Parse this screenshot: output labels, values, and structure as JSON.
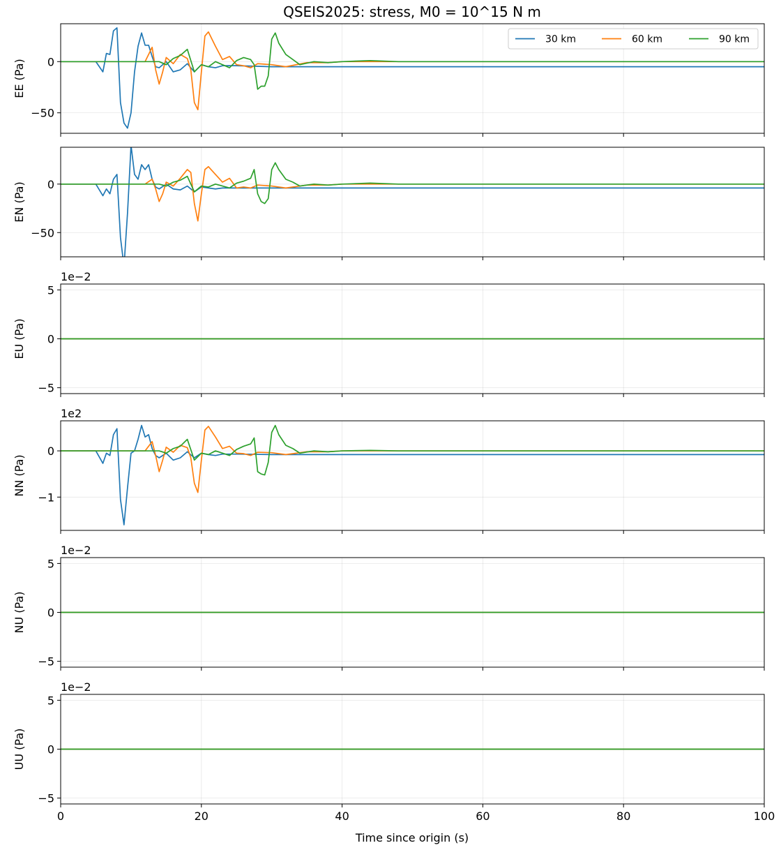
{
  "chart_data": {
    "type": "line",
    "title": "QSEIS2025: stress, M0 = 10^15 N m",
    "xlabel": "Time since origin (s)",
    "xlim": [
      0,
      100
    ],
    "x_ticks": [
      0,
      20,
      40,
      60,
      80,
      100
    ],
    "x_tick_labels": [
      "0",
      "20",
      "40",
      "60",
      "80",
      "100"
    ],
    "grid": true,
    "legend": {
      "location": "top-right of first panel",
      "entries": [
        "30 km",
        "60 km",
        "90 km"
      ]
    },
    "colors": {
      "30 km": "#1f77b4",
      "60 km": "#ff7f0e",
      "90 km": "#2ca02c"
    },
    "panels": [
      {
        "ylabel": "EE (Pa)",
        "ylim": [
          -70,
          37
        ],
        "y_ticks": [
          0,
          -50
        ],
        "y_tick_labels": [
          "0",
          "−50"
        ],
        "offset_text": "",
        "series": [
          {
            "name": "30 km",
            "x": [
              0,
              5,
              6,
              6.5,
              7,
              7.5,
              8,
              8.5,
              9,
              9.5,
              10,
              10.5,
              11,
              11.5,
              12,
              12.5,
              13,
              13.5,
              14,
              15,
              16,
              17,
              18,
              19,
              20,
              21,
              22,
              23,
              24,
              25,
              30,
              40,
              60,
              80,
              100
            ],
            "y": [
              0,
              0,
              -10,
              8,
              7,
              30,
              33,
              -40,
              -60,
              -65,
              -50,
              -10,
              15,
              28,
              16,
              16,
              5,
              -5,
              -6,
              0,
              -10,
              -8,
              -2,
              -10,
              -3,
              -5,
              -6,
              -4,
              -4,
              -4,
              -5,
              -5,
              -5,
              -5,
              -5
            ]
          },
          {
            "name": "60 km",
            "x": [
              0,
              12,
              13,
              13.5,
              14,
              14.5,
              15,
              16,
              17,
              18,
              18.5,
              19,
              19.5,
              20,
              20.5,
              21,
              22,
              23,
              24,
              25,
              26,
              27,
              28,
              30,
              32,
              35,
              38,
              40,
              60,
              100
            ],
            "y": [
              0,
              0,
              14,
              -8,
              -22,
              -10,
              4,
              -2,
              7,
              3,
              -8,
              -40,
              -47,
              -10,
              25,
              29,
              15,
              2,
              5,
              -3,
              -4,
              -6,
              -2,
              -3,
              -5,
              -1,
              -1,
              0,
              0,
              0
            ]
          },
          {
            "name": "90 km",
            "x": [
              0,
              14,
              15,
              16,
              17,
              18,
              19,
              20,
              21,
              22,
              23,
              24,
              25,
              26,
              27,
              27.5,
              28,
              28.5,
              29,
              29.5,
              30,
              30.5,
              31,
              32,
              33,
              34,
              36,
              38,
              40,
              44,
              48,
              100
            ],
            "y": [
              0,
              0,
              -3,
              3,
              6,
              12,
              -10,
              -3,
              -5,
              0,
              -3,
              -6,
              1,
              4,
              2,
              -3,
              -27,
              -24,
              -24,
              -14,
              22,
              28,
              18,
              7,
              2,
              -3,
              0,
              -1,
              0,
              1,
              0,
              0
            ]
          }
        ]
      },
      {
        "ylabel": "EN (Pa)",
        "ylim": [
          -75,
          38
        ],
        "y_ticks": [
          0,
          -50
        ],
        "y_tick_labels": [
          "0",
          "−50"
        ],
        "offset_text": "",
        "series": [
          {
            "name": "30 km",
            "x": [
              0,
              5,
              6,
              6.5,
              7,
              7.5,
              8,
              8.5,
              9,
              9.5,
              10,
              10.5,
              11,
              11.5,
              12,
              12.5,
              13,
              13.5,
              14,
              15,
              16,
              17,
              18,
              19,
              20,
              21,
              22,
              23,
              24,
              25,
              30,
              40,
              60,
              80,
              100
            ],
            "y": [
              0,
              0,
              -12,
              -5,
              -10,
              5,
              10,
              -55,
              -85,
              -30,
              40,
              10,
              5,
              20,
              15,
              20,
              5,
              -3,
              -5,
              0,
              -5,
              -6,
              -2,
              -8,
              -3,
              -4,
              -5,
              -4,
              -4,
              -4,
              -4,
              -4,
              -4,
              -4,
              -4
            ]
          },
          {
            "name": "60 km",
            "x": [
              0,
              12,
              13,
              13.5,
              14,
              14.5,
              15,
              16,
              17,
              18,
              18.5,
              19,
              19.5,
              20,
              20.5,
              21,
              22,
              23,
              24,
              25,
              26,
              27,
              28,
              30,
              32,
              35,
              38,
              40,
              60,
              100
            ],
            "y": [
              0,
              0,
              5,
              -5,
              -18,
              -10,
              2,
              -2,
              6,
              15,
              12,
              -20,
              -38,
              -10,
              15,
              18,
              10,
              2,
              6,
              -4,
              -3,
              -4,
              -1,
              -2,
              -4,
              -1,
              -1,
              0,
              0,
              0
            ]
          },
          {
            "name": "90 km",
            "x": [
              0,
              14,
              15,
              16,
              17,
              18,
              19,
              20,
              21,
              22,
              23,
              24,
              25,
              26,
              27,
              27.5,
              28,
              28.5,
              29,
              29.5,
              30,
              30.5,
              31,
              32,
              33,
              34,
              36,
              38,
              40,
              44,
              48,
              100
            ],
            "y": [
              0,
              0,
              -2,
              2,
              4,
              8,
              -8,
              -2,
              -3,
              0,
              -2,
              -4,
              1,
              3,
              6,
              15,
              -10,
              -18,
              -20,
              -15,
              15,
              22,
              15,
              5,
              2,
              -2,
              0,
              -1,
              0,
              1,
              0,
              0
            ]
          }
        ]
      },
      {
        "ylabel": "EU (Pa)",
        "ylim": [
          -5.6,
          5.6
        ],
        "y_ticks": [
          5,
          0,
          -5
        ],
        "y_tick_labels": [
          "5",
          "0",
          "−5"
        ],
        "offset_text": "1e−2",
        "series": [
          {
            "name": "30 km",
            "x": [
              0,
              100
            ],
            "y": [
              0,
              0
            ]
          },
          {
            "name": "60 km",
            "x": [
              0,
              100
            ],
            "y": [
              0,
              0
            ]
          },
          {
            "name": "90 km",
            "x": [
              0,
              100
            ],
            "y": [
              0,
              0
            ]
          }
        ]
      },
      {
        "ylabel": "NN (Pa)",
        "ylim": [
          -1.72,
          0.65
        ],
        "y_ticks": [
          0,
          -1
        ],
        "y_tick_labels": [
          "0",
          "−1"
        ],
        "offset_text": "1e2",
        "series": [
          {
            "name": "30 km",
            "x": [
              0,
              5,
              6,
              6.5,
              7,
              7.5,
              8,
              8.5,
              9,
              9.5,
              10,
              10.5,
              11,
              11.5,
              12,
              12.5,
              13,
              13.5,
              14,
              15,
              16,
              17,
              18,
              19,
              20,
              21,
              22,
              23,
              24,
              25,
              30,
              40,
              60,
              80,
              100
            ],
            "y": [
              0,
              0,
              -0.27,
              -0.05,
              -0.1,
              0.35,
              0.48,
              -1.05,
              -1.6,
              -0.8,
              -0.05,
              0,
              0.25,
              0.55,
              0.3,
              0.35,
              0.05,
              -0.1,
              -0.15,
              -0.05,
              -0.2,
              -0.15,
              -0.02,
              -0.15,
              -0.05,
              -0.08,
              -0.1,
              -0.07,
              -0.07,
              -0.07,
              -0.08,
              -0.08,
              -0.08,
              -0.08,
              -0.08
            ]
          },
          {
            "name": "60 km",
            "x": [
              0,
              12,
              13,
              13.5,
              14,
              14.5,
              15,
              16,
              17,
              18,
              18.5,
              19,
              19.5,
              20,
              20.5,
              21,
              22,
              23,
              24,
              25,
              26,
              27,
              28,
              30,
              32,
              35,
              38,
              40,
              60,
              100
            ],
            "y": [
              0,
              0,
              0.2,
              -0.1,
              -0.45,
              -0.2,
              0.08,
              -0.03,
              0.12,
              0.07,
              -0.15,
              -0.7,
              -0.9,
              -0.2,
              0.45,
              0.53,
              0.3,
              0.05,
              0.1,
              -0.05,
              -0.06,
              -0.1,
              -0.03,
              -0.04,
              -0.08,
              -0.02,
              -0.02,
              0,
              0,
              0
            ]
          },
          {
            "name": "90 km",
            "x": [
              0,
              14,
              15,
              16,
              17,
              18,
              19,
              20,
              21,
              22,
              23,
              24,
              25,
              26,
              27,
              27.5,
              28,
              28.5,
              29,
              29.5,
              30,
              30.5,
              31,
              32,
              33,
              34,
              36,
              38,
              40,
              44,
              48,
              100
            ],
            "y": [
              0,
              0,
              -0.05,
              0.05,
              0.1,
              0.25,
              -0.2,
              -0.05,
              -0.08,
              0,
              -0.05,
              -0.1,
              0.03,
              0.1,
              0.15,
              0.28,
              -0.45,
              -0.5,
              -0.52,
              -0.25,
              0.4,
              0.55,
              0.35,
              0.12,
              0.05,
              -0.05,
              0,
              -0.02,
              0,
              0.01,
              0,
              0
            ]
          }
        ]
      },
      {
        "ylabel": "NU (Pa)",
        "ylim": [
          -5.6,
          5.6
        ],
        "y_ticks": [
          5,
          0,
          -5
        ],
        "y_tick_labels": [
          "5",
          "0",
          "−5"
        ],
        "offset_text": "1e−2",
        "series": [
          {
            "name": "30 km",
            "x": [
              0,
              100
            ],
            "y": [
              0,
              0
            ]
          },
          {
            "name": "60 km",
            "x": [
              0,
              100
            ],
            "y": [
              0,
              0
            ]
          },
          {
            "name": "90 km",
            "x": [
              0,
              100
            ],
            "y": [
              0,
              0
            ]
          }
        ]
      },
      {
        "ylabel": "UU (Pa)",
        "ylim": [
          -5.6,
          5.6
        ],
        "y_ticks": [
          5,
          0,
          -5
        ],
        "y_tick_labels": [
          "5",
          "0",
          "−5"
        ],
        "offset_text": "1e−2",
        "series": [
          {
            "name": "30 km",
            "x": [
              0,
              100
            ],
            "y": [
              0,
              0
            ]
          },
          {
            "name": "60 km",
            "x": [
              0,
              100
            ],
            "y": [
              0,
              0
            ]
          },
          {
            "name": "90 km",
            "x": [
              0,
              100
            ],
            "y": [
              0,
              0
            ]
          }
        ]
      }
    ]
  }
}
